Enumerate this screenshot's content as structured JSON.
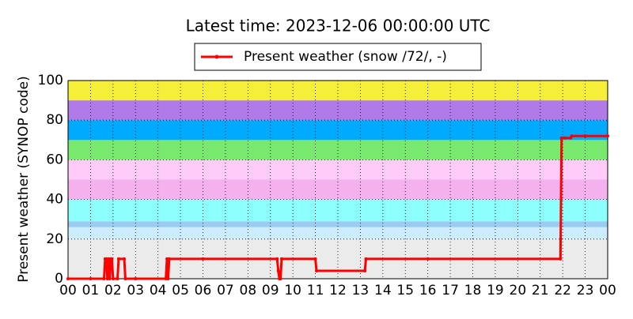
{
  "chart_data": {
    "type": "line",
    "title": "Latest time: 2023-12-06 00:00:00 UTC",
    "y_label": "Present weather (SYNOP code)",
    "xlim": [
      0,
      24
    ],
    "ylim": [
      0,
      100
    ],
    "xticks": [
      {
        "value": 0,
        "label": "00"
      },
      {
        "value": 1,
        "label": "01"
      },
      {
        "value": 2,
        "label": "02"
      },
      {
        "value": 3,
        "label": "03"
      },
      {
        "value": 4,
        "label": "04"
      },
      {
        "value": 5,
        "label": "05"
      },
      {
        "value": 6,
        "label": "06"
      },
      {
        "value": 7,
        "label": "07"
      },
      {
        "value": 8,
        "label": "08"
      },
      {
        "value": 9,
        "label": "09"
      },
      {
        "value": 10,
        "label": "10"
      },
      {
        "value": 11,
        "label": "11"
      },
      {
        "value": 12,
        "label": "12"
      },
      {
        "value": 13,
        "label": "13"
      },
      {
        "value": 14,
        "label": "14"
      },
      {
        "value": 15,
        "label": "15"
      },
      {
        "value": 16,
        "label": "16"
      },
      {
        "value": 17,
        "label": "17"
      },
      {
        "value": 18,
        "label": "18"
      },
      {
        "value": 19,
        "label": "19"
      },
      {
        "value": 20,
        "label": "20"
      },
      {
        "value": 21,
        "label": "21"
      },
      {
        "value": 22,
        "label": "22"
      },
      {
        "value": 23,
        "label": "23"
      },
      {
        "value": 24,
        "label": "00"
      }
    ],
    "yticks": [
      0,
      20,
      40,
      60,
      80,
      100
    ],
    "grid": true,
    "legend": "top",
    "background_bands": [
      {
        "from": 0,
        "to": 20,
        "color": "#ebebeb"
      },
      {
        "from": 20,
        "to": 26,
        "color": "#ccecff"
      },
      {
        "from": 26,
        "to": 29,
        "color": "#99ccf0"
      },
      {
        "from": 29,
        "to": 40,
        "color": "#8cfffc"
      },
      {
        "from": 40,
        "to": 50,
        "color": "#f5b0ee"
      },
      {
        "from": 50,
        "to": 60,
        "color": "#ffccfa"
      },
      {
        "from": 60,
        "to": 70,
        "color": "#78e86f"
      },
      {
        "from": 70,
        "to": 80,
        "color": "#00aaff"
      },
      {
        "from": 80,
        "to": 90,
        "color": "#b07ae8"
      },
      {
        "from": 90,
        "to": 100,
        "color": "#f5ef3a"
      }
    ],
    "x": [
      0,
      1.0,
      1.6,
      1.65,
      1.7,
      1.75,
      1.8,
      1.85,
      1.9,
      1.95,
      2.0,
      2.2,
      2.25,
      2.5,
      2.55,
      3.0,
      4.35,
      4.4,
      4.45,
      4.5,
      6,
      9.3,
      9.35,
      9.4,
      9.45,
      9.5,
      11.0,
      11.05,
      13.2,
      13.25,
      16,
      21.9,
      21.95,
      22.1,
      22.35,
      22.4,
      23,
      24
    ],
    "series": [
      {
        "name": "Present weather (snow /72/, -)",
        "color": "#ff0000",
        "values": [
          0,
          0,
          0,
          10,
          10,
          0,
          10,
          0,
          10,
          10,
          0,
          0,
          10,
          10,
          0,
          0,
          0,
          10,
          0,
          10,
          10,
          10,
          4,
          0,
          0,
          10,
          10,
          4,
          4,
          10,
          10,
          10,
          71,
          71,
          71,
          72,
          72,
          72
        ]
      }
    ]
  }
}
